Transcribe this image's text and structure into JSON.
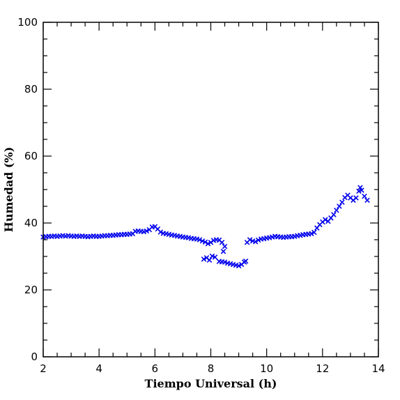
{
  "chart_data": {
    "type": "scatter",
    "title": "",
    "xlabel": "Tiempo Universal (h)",
    "ylabel": "Humedad (%)",
    "xlim": [
      2,
      14
    ],
    "ylim": [
      0,
      100
    ],
    "xticks": [
      2,
      4,
      6,
      8,
      10,
      12,
      14
    ],
    "yticks": [
      0,
      20,
      40,
      60,
      80,
      100
    ],
    "xtick_labels": [
      "2",
      "4",
      "6",
      "8",
      "10",
      "12",
      "14"
    ],
    "ytick_labels": [
      "0",
      "20",
      "40",
      "60",
      "80",
      "100"
    ],
    "grid": false,
    "marker": "x",
    "marker_color": "#0000ee",
    "series": [
      {
        "points": [
          [
            2.0,
            35.8
          ],
          [
            2.1,
            35.9
          ],
          [
            2.2,
            36.0
          ],
          [
            2.3,
            36.0
          ],
          [
            2.4,
            36.1
          ],
          [
            2.5,
            36.0
          ],
          [
            2.6,
            36.1
          ],
          [
            2.7,
            36.2
          ],
          [
            2.8,
            36.1
          ],
          [
            2.9,
            36.2
          ],
          [
            3.0,
            36.1
          ],
          [
            3.1,
            36.0
          ],
          [
            3.2,
            36.1
          ],
          [
            3.3,
            36.0
          ],
          [
            3.4,
            36.1
          ],
          [
            3.5,
            36.0
          ],
          [
            3.6,
            35.9
          ],
          [
            3.7,
            36.0
          ],
          [
            3.8,
            36.1
          ],
          [
            3.9,
            36.0
          ],
          [
            4.0,
            36.0
          ],
          [
            4.1,
            36.1
          ],
          [
            4.2,
            36.2
          ],
          [
            4.3,
            36.2
          ],
          [
            4.4,
            36.3
          ],
          [
            4.5,
            36.3
          ],
          [
            4.6,
            36.4
          ],
          [
            4.7,
            36.5
          ],
          [
            4.8,
            36.5
          ],
          [
            4.9,
            36.6
          ],
          [
            5.0,
            36.6
          ],
          [
            5.1,
            36.7
          ],
          [
            5.2,
            36.8
          ],
          [
            5.3,
            37.5
          ],
          [
            5.4,
            37.6
          ],
          [
            5.5,
            37.5
          ],
          [
            5.6,
            37.4
          ],
          [
            5.7,
            37.6
          ],
          [
            5.8,
            38.0
          ],
          [
            5.9,
            38.8
          ],
          [
            6.0,
            38.9
          ],
          [
            6.1,
            38.2
          ],
          [
            6.2,
            37.3
          ],
          [
            6.3,
            36.9
          ],
          [
            6.4,
            36.8
          ],
          [
            6.5,
            36.6
          ],
          [
            6.6,
            36.4
          ],
          [
            6.7,
            36.3
          ],
          [
            6.8,
            36.1
          ],
          [
            6.9,
            36.0
          ],
          [
            7.0,
            35.8
          ],
          [
            7.1,
            35.7
          ],
          [
            7.2,
            35.6
          ],
          [
            7.3,
            35.4
          ],
          [
            7.4,
            35.3
          ],
          [
            7.5,
            35.2
          ],
          [
            7.6,
            35.0
          ],
          [
            7.7,
            34.6
          ],
          [
            7.8,
            34.3
          ],
          [
            7.9,
            33.8
          ],
          [
            8.0,
            34.2
          ],
          [
            8.1,
            34.8
          ],
          [
            8.2,
            35.0
          ],
          [
            8.3,
            34.9
          ],
          [
            8.4,
            34.2
          ],
          [
            8.5,
            33.0
          ],
          [
            7.75,
            29.2
          ],
          [
            7.85,
            29.6
          ],
          [
            7.95,
            28.9
          ],
          [
            8.05,
            30.1
          ],
          [
            8.15,
            29.8
          ],
          [
            8.45,
            31.5
          ],
          [
            8.3,
            28.5
          ],
          [
            8.4,
            28.4
          ],
          [
            8.5,
            28.3
          ],
          [
            8.6,
            28.0
          ],
          [
            8.7,
            27.8
          ],
          [
            8.8,
            27.6
          ],
          [
            8.9,
            27.4
          ],
          [
            9.0,
            27.2
          ],
          [
            9.1,
            27.6
          ],
          [
            9.2,
            28.3
          ],
          [
            9.25,
            28.6
          ],
          [
            9.3,
            34.2
          ],
          [
            9.4,
            35.0
          ],
          [
            9.5,
            34.6
          ],
          [
            9.6,
            34.4
          ],
          [
            9.7,
            34.9
          ],
          [
            9.8,
            35.2
          ],
          [
            9.9,
            35.3
          ],
          [
            10.0,
            35.5
          ],
          [
            10.1,
            35.6
          ],
          [
            10.2,
            35.8
          ],
          [
            10.3,
            36.0
          ],
          [
            10.4,
            35.9
          ],
          [
            10.5,
            35.8
          ],
          [
            10.6,
            35.7
          ],
          [
            10.7,
            35.8
          ],
          [
            10.8,
            35.9
          ],
          [
            10.9,
            35.9
          ],
          [
            11.0,
            36.0
          ],
          [
            11.1,
            36.2
          ],
          [
            11.2,
            36.3
          ],
          [
            11.3,
            36.5
          ],
          [
            11.4,
            36.6
          ],
          [
            11.5,
            36.7
          ],
          [
            11.6,
            36.8
          ],
          [
            11.7,
            37.2
          ],
          [
            11.8,
            38.5
          ],
          [
            11.9,
            39.5
          ],
          [
            12.0,
            40.3
          ],
          [
            12.1,
            41.0
          ],
          [
            12.2,
            40.5
          ],
          [
            12.3,
            41.5
          ],
          [
            12.4,
            42.5
          ],
          [
            12.5,
            43.8
          ],
          [
            12.6,
            45.0
          ],
          [
            12.7,
            46.2
          ],
          [
            12.8,
            47.6
          ],
          [
            12.9,
            48.3
          ],
          [
            13.0,
            47.5
          ],
          [
            13.1,
            46.8
          ],
          [
            13.2,
            47.5
          ],
          [
            13.3,
            49.5
          ],
          [
            13.35,
            50.6
          ],
          [
            13.4,
            49.8
          ],
          [
            13.5,
            48.0
          ],
          [
            13.6,
            46.8
          ]
        ]
      }
    ]
  }
}
